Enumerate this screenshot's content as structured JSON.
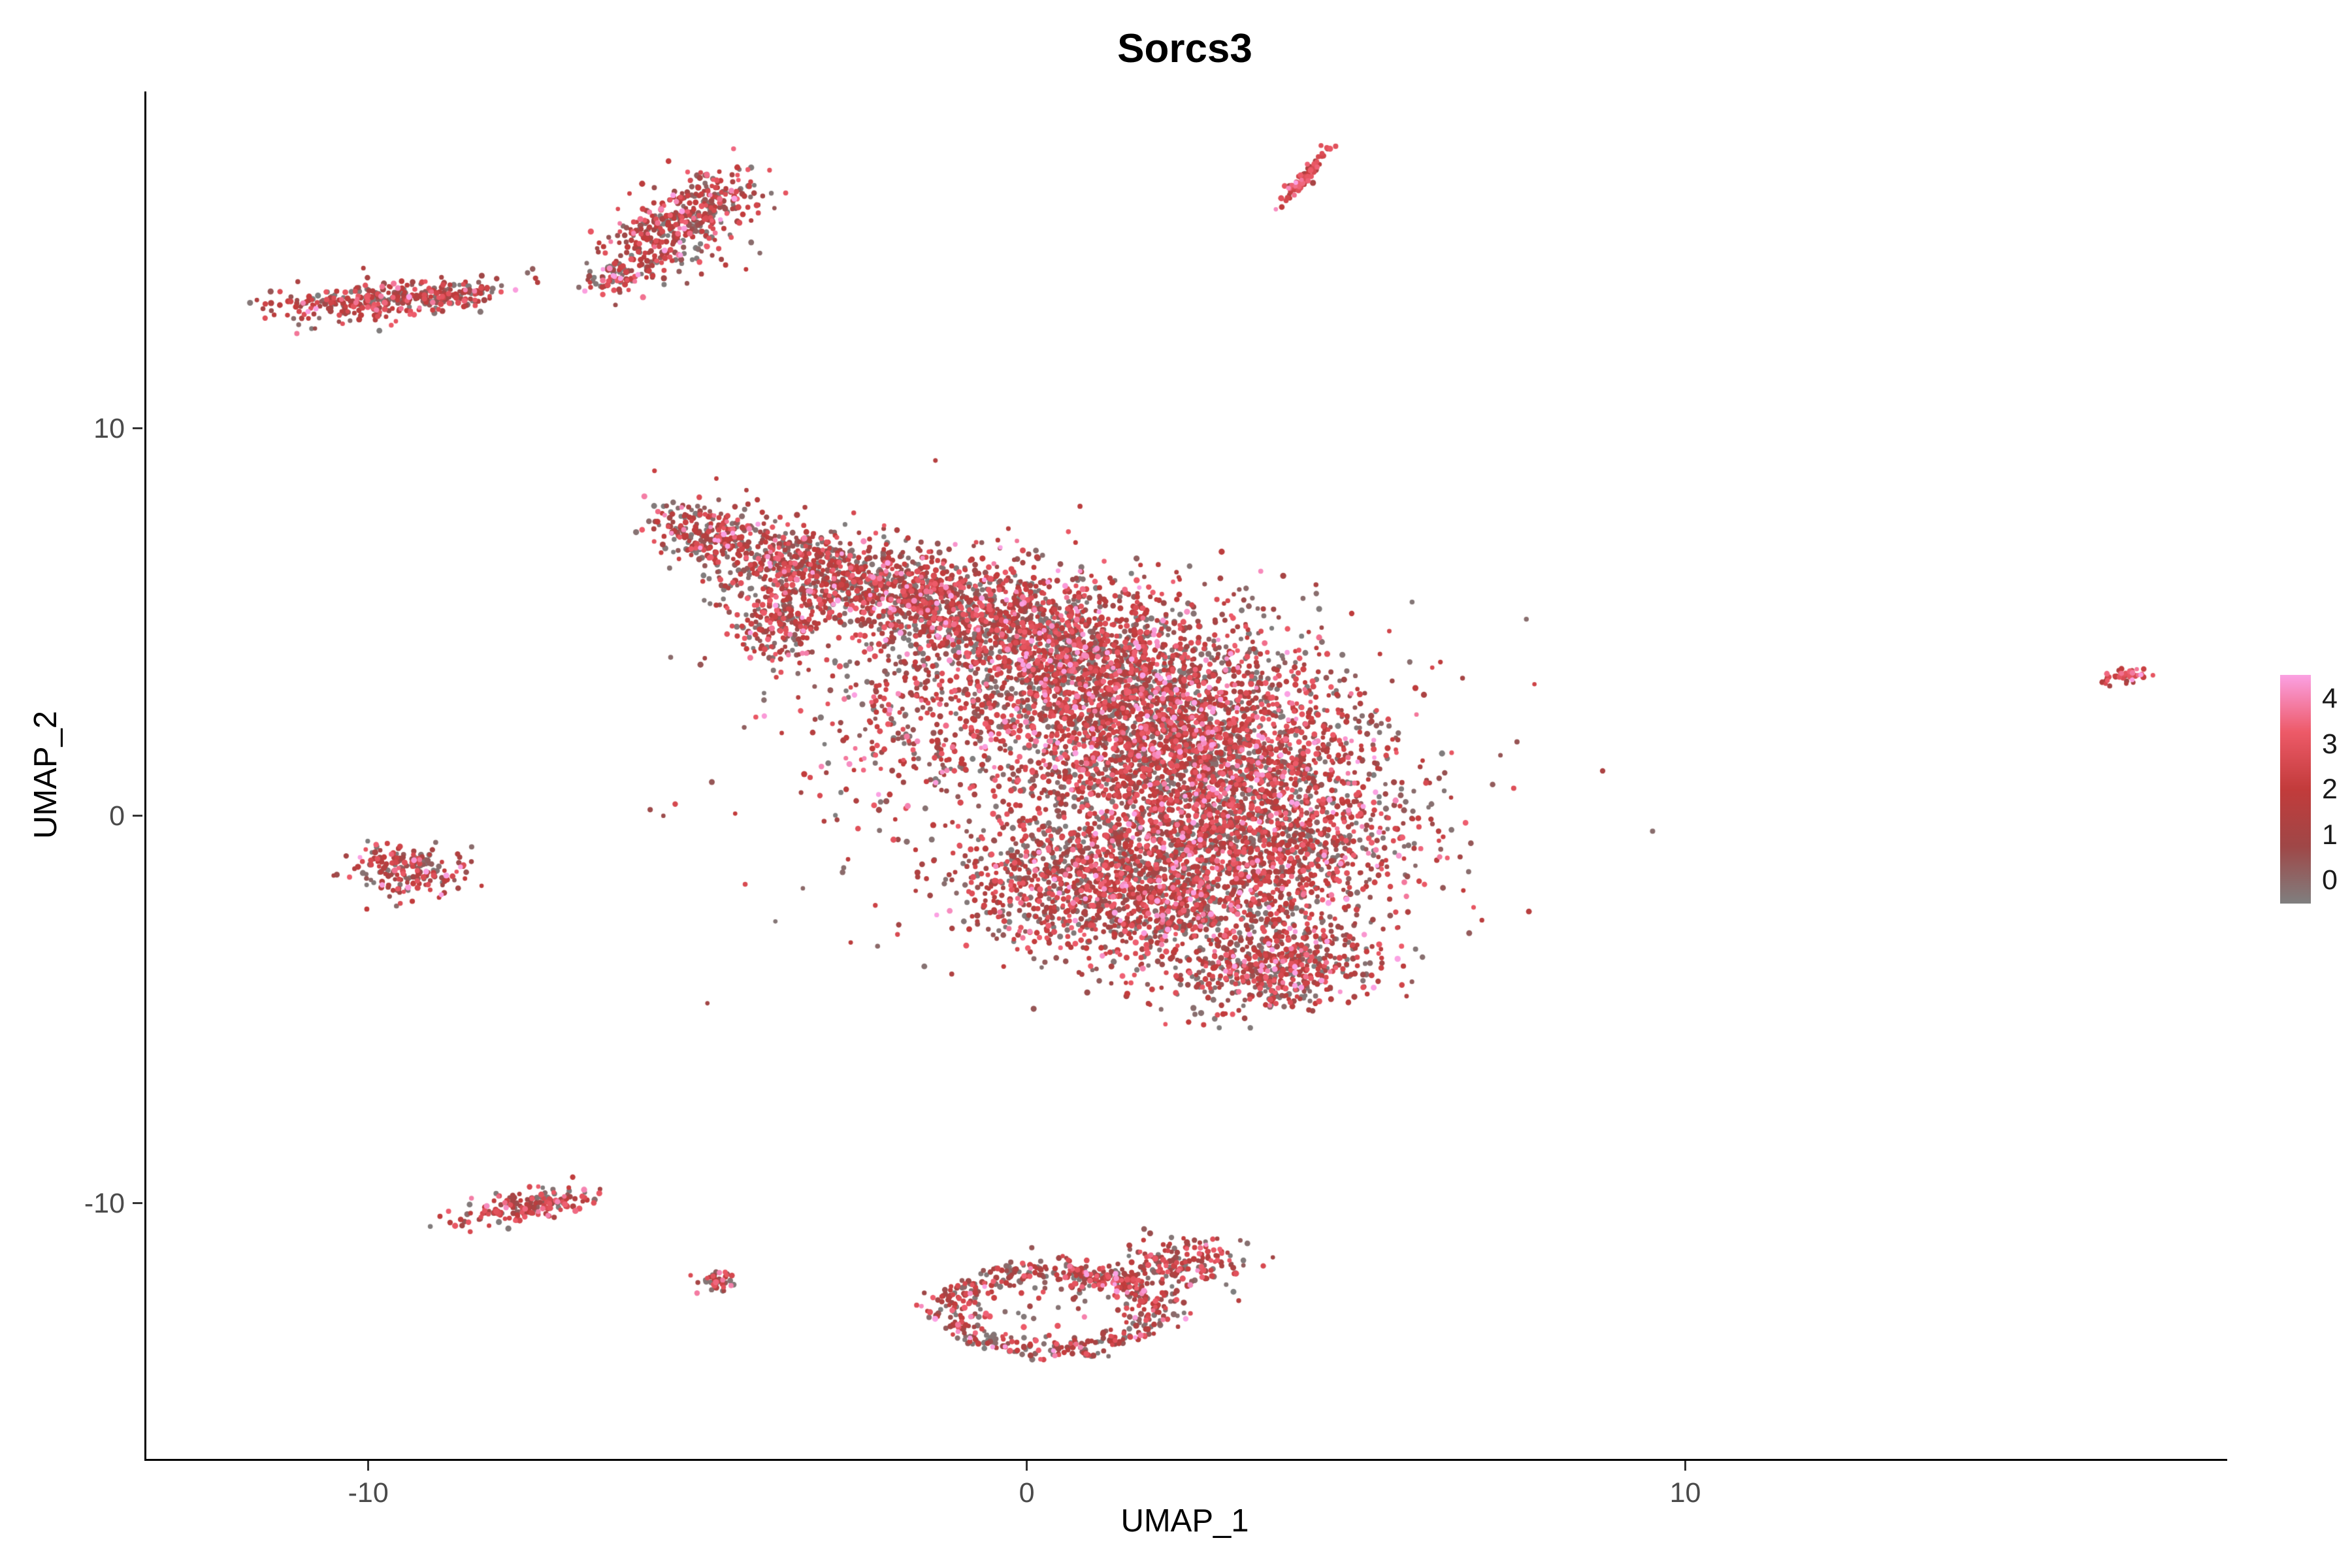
{
  "title": "Sorcs3",
  "axes": {
    "x": {
      "label": "UMAP_1",
      "ticks": [
        "-10",
        "0",
        "10"
      ],
      "tick_values": [
        -10,
        0,
        10
      ]
    },
    "y": {
      "label": "UMAP_2",
      "ticks": [
        "10",
        "0",
        "-10"
      ],
      "tick_values": [
        10,
        0,
        -10
      ]
    }
  },
  "legend": {
    "labels": [
      "4",
      "3",
      "2",
      "1",
      "0"
    ],
    "values": [
      4,
      3,
      2,
      1,
      0
    ],
    "min": 0,
    "max": 4,
    "gradient_stops": [
      "#7F7F7F",
      "#9F4747",
      "#C23B3B",
      "#ED5A68",
      "#FBA1E3"
    ]
  },
  "chart_data": {
    "type": "scatter",
    "title": "Sorcs3",
    "xlabel": "UMAP_1",
    "ylabel": "UMAP_2",
    "xlim": [
      -13.4,
      18.2
    ],
    "ylim": [
      -16.6,
      18.7
    ],
    "x_ticks": [
      -10,
      0,
      10
    ],
    "y_ticks": [
      10,
      0,
      -10
    ],
    "grid": false,
    "legend_position": "right",
    "color_scale": {
      "variable": "Sorcs3 expression",
      "min": 0,
      "max": 4,
      "stops": [
        "#7F7F7F",
        "#9F4747",
        "#C23B3B",
        "#ED5A68",
        "#FBA1E3"
      ]
    },
    "point_radius_px": 4,
    "seed": 1337,
    "clusters": [
      {
        "name": "main-tip",
        "cx": -4.8,
        "cy": 7.3,
        "sx": 0.45,
        "sy": 0.38,
        "rot": -0.35,
        "n": 260
      },
      {
        "name": "main-upper",
        "cx": -3.5,
        "cy": 6.5,
        "sx": 0.6,
        "sy": 0.5,
        "rot": -0.3,
        "n": 380
      },
      {
        "name": "main-clump-left",
        "cx": -3.8,
        "cy": 4.9,
        "sx": 0.33,
        "sy": 0.55,
        "rot": 0.1,
        "n": 200
      },
      {
        "name": "main-upper-mid",
        "cx": -2.0,
        "cy": 5.8,
        "sx": 0.85,
        "sy": 0.6,
        "rot": -0.2,
        "n": 600
      },
      {
        "name": "main-mid",
        "cx": -0.4,
        "cy": 5.1,
        "sx": 1.0,
        "sy": 0.75,
        "rot": -0.15,
        "n": 720
      },
      {
        "name": "main-mid2",
        "cx": 0.9,
        "cy": 4.0,
        "sx": 1.2,
        "sy": 0.95,
        "rot": 0,
        "n": 950
      },
      {
        "name": "main-mid3",
        "cx": 1.9,
        "cy": 2.6,
        "sx": 1.35,
        "sy": 1.05,
        "rot": 0,
        "n": 1250
      },
      {
        "name": "main-core",
        "cx": 2.7,
        "cy": 1.0,
        "sx": 1.45,
        "sy": 1.15,
        "rot": 0,
        "n": 1400
      },
      {
        "name": "main-lower",
        "cx": 3.1,
        "cy": -0.8,
        "sx": 1.35,
        "sy": 1.05,
        "rot": 0,
        "n": 1200
      },
      {
        "name": "main-lower2",
        "cx": 2.2,
        "cy": -2.3,
        "sx": 1.15,
        "sy": 0.85,
        "rot": 0.2,
        "n": 850
      },
      {
        "name": "main-lower-lobe",
        "cx": 3.8,
        "cy": -3.9,
        "sx": 0.8,
        "sy": 0.55,
        "rot": 0.35,
        "n": 550
      },
      {
        "name": "main-left-lower",
        "cx": 0.4,
        "cy": -1.6,
        "sx": 0.95,
        "sy": 0.8,
        "rot": 0,
        "n": 480
      },
      {
        "name": "main-left-edge",
        "cx": -1.6,
        "cy": 2.6,
        "sx": 0.75,
        "sy": 1.25,
        "rot": -0.15,
        "n": 250
      },
      {
        "name": "main-halo",
        "cx": 0.8,
        "cy": 1.8,
        "sx": 2.6,
        "sy": 2.4,
        "rot": 0,
        "n": 400
      },
      {
        "name": "island-top-left",
        "cx": -9.9,
        "cy": 13.3,
        "sx": 0.8,
        "sy": 0.24,
        "rot": 0.15,
        "n": 320
      },
      {
        "name": "island-top-left-tail",
        "cx": -8.6,
        "cy": 13.5,
        "sx": 0.32,
        "sy": 0.14,
        "rot": 0.2,
        "n": 50
      },
      {
        "name": "island-top",
        "cx": -5.4,
        "cy": 15.1,
        "sx": 0.8,
        "sy": 0.42,
        "rot": 0.95,
        "n": 330
      },
      {
        "name": "island-top-upper",
        "cx": -4.9,
        "cy": 15.8,
        "sx": 0.45,
        "sy": 0.3,
        "rot": 0.9,
        "n": 130
      },
      {
        "name": "island-top-tail",
        "cx": -6.15,
        "cy": 13.95,
        "sx": 0.28,
        "sy": 0.18,
        "rot": 0.6,
        "n": 60
      },
      {
        "name": "streak-top-right",
        "cx": 4.2,
        "cy": 16.5,
        "sx": 0.4,
        "sy": 0.055,
        "rot": 1.1,
        "n": 85,
        "expr_bias": 1
      },
      {
        "name": "island-left",
        "cx": -9.4,
        "cy": -1.4,
        "sx": 0.42,
        "sy": 0.33,
        "rot": -0.5,
        "n": 190
      },
      {
        "name": "island-far-right",
        "cx": 16.6,
        "cy": 3.6,
        "sx": 0.2,
        "sy": 0.12,
        "rot": 0.4,
        "n": 40,
        "expr_bias": 1
      },
      {
        "name": "island-bottom-left",
        "cx": -7.6,
        "cy": -10.05,
        "sx": 0.55,
        "sy": 0.2,
        "rot": 0.25,
        "n": 170
      },
      {
        "name": "island-tiny",
        "cx": -4.7,
        "cy": -12.0,
        "sx": 0.16,
        "sy": 0.13,
        "rot": 0,
        "n": 45
      },
      {
        "name": "ring-bottom",
        "shape": "ring",
        "cx": 0.35,
        "cy": -12.75,
        "rx": 1.5,
        "ry": 1.05,
        "tsig": 0.16,
        "n": 460
      },
      {
        "name": "ring-lobe-right",
        "cx": 2.35,
        "cy": -11.55,
        "sx": 0.5,
        "sy": 0.35,
        "rot": 0.3,
        "n": 170
      },
      {
        "name": "ring-lobe-mid",
        "cx": 1.15,
        "cy": -11.85,
        "sx": 0.4,
        "sy": 0.28,
        "rot": 0,
        "n": 90
      },
      {
        "name": "ring-inner",
        "cx": 0.3,
        "cy": -12.6,
        "sx": 0.7,
        "sy": 0.5,
        "rot": 0,
        "n": 35
      }
    ]
  }
}
